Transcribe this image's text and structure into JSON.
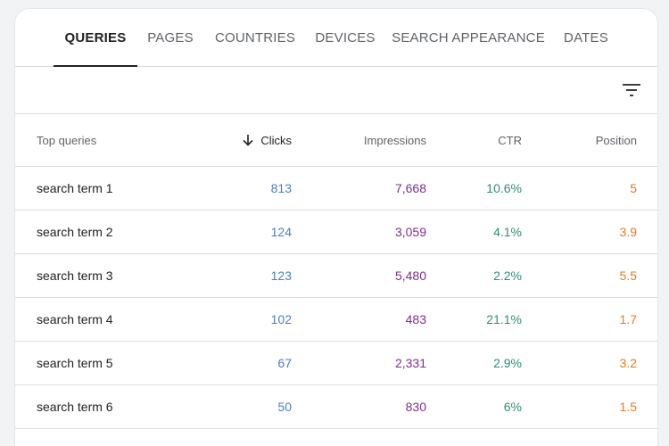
{
  "tabs": [
    {
      "label": "QUERIES",
      "active": true
    },
    {
      "label": "PAGES"
    },
    {
      "label": "COUNTRIES"
    },
    {
      "label": "DEVICES"
    },
    {
      "label": "SEARCH APPEARANCE"
    },
    {
      "label": "DATES"
    }
  ],
  "toolbar": {
    "filter_icon": "filter-icon"
  },
  "table": {
    "columns": {
      "query": "Top queries",
      "clicks": "Clicks",
      "impressions": "Impressions",
      "ctr": "CTR",
      "position": "Position"
    },
    "sort": {
      "column": "clicks",
      "direction": "descending",
      "icon": "arrow-down-icon"
    },
    "rows": [
      {
        "query": "search term 1",
        "clicks": "813",
        "impressions": "7,668",
        "ctr": "10.6%",
        "position": "5"
      },
      {
        "query": "search term 2",
        "clicks": "124",
        "impressions": "3,059",
        "ctr": "4.1%",
        "position": "3.9"
      },
      {
        "query": "search term 3",
        "clicks": "123",
        "impressions": "5,480",
        "ctr": "2.2%",
        "position": "5.5"
      },
      {
        "query": "search term 4",
        "clicks": "102",
        "impressions": "483",
        "ctr": "21.1%",
        "position": "1.7"
      },
      {
        "query": "search term 5",
        "clicks": "67",
        "impressions": "2,331",
        "ctr": "2.9%",
        "position": "3.2"
      },
      {
        "query": "search term 6",
        "clicks": "50",
        "impressions": "830",
        "ctr": "6%",
        "position": "1.5"
      }
    ]
  },
  "colors": {
    "clicks": "#4a7fc1",
    "impressions": "#7b2e8e",
    "ctr": "#2f8f6f",
    "position": "#e37c1e"
  }
}
